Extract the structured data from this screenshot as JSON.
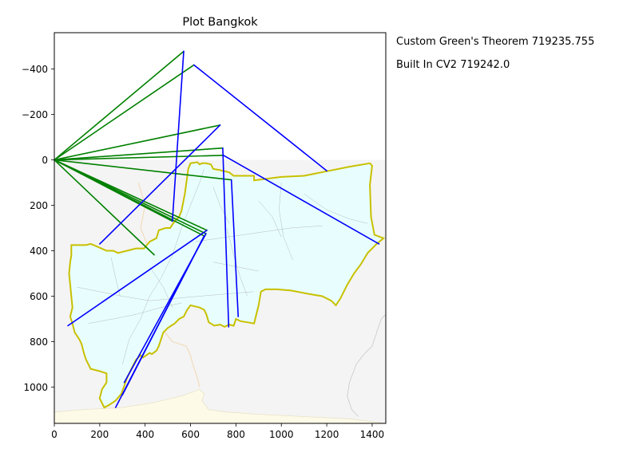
{
  "chart_data": {
    "type": "line",
    "title": "Plot Bangkok",
    "xlabel": "",
    "ylabel": "",
    "xlim": [
      0,
      1460
    ],
    "ylim": [
      1160,
      -560
    ],
    "y_inverted": true,
    "grid": false,
    "x_ticks": [
      0,
      200,
      400,
      600,
      800,
      1000,
      1200,
      1400
    ],
    "x_tick_labels": [
      "0",
      "200",
      "400",
      "600",
      "800",
      "1000",
      "1200",
      "1400"
    ],
    "y_ticks": [
      -400,
      -200,
      0,
      200,
      400,
      600,
      800,
      1000
    ],
    "y_tick_labels": [
      "−400",
      "−200",
      "0",
      "200",
      "400",
      "600",
      "800",
      "1000"
    ],
    "annotations": [
      "Custom Green's Theorem 719235.755",
      "Built In CV2 719242.0"
    ],
    "background_map": {
      "land_color": "#f4f4f4",
      "sea_color": "#fefae8",
      "district_fill": "#e8fefe",
      "district_edge": "#a8a8a8",
      "boundary_color": "#c8c000",
      "boundary": [
        [
          75,
          375
        ],
        [
          140,
          375
        ],
        [
          160,
          370
        ],
        [
          185,
          380
        ],
        [
          230,
          400
        ],
        [
          260,
          400
        ],
        [
          280,
          410
        ],
        [
          320,
          400
        ],
        [
          360,
          390
        ],
        [
          395,
          390
        ],
        [
          420,
          360
        ],
        [
          450,
          345
        ],
        [
          460,
          310
        ],
        [
          490,
          300
        ],
        [
          510,
          300
        ],
        [
          520,
          285
        ],
        [
          530,
          270
        ],
        [
          550,
          250
        ],
        [
          560,
          225
        ],
        [
          575,
          150
        ],
        [
          590,
          40
        ],
        [
          600,
          15
        ],
        [
          630,
          10
        ],
        [
          640,
          20
        ],
        [
          650,
          15
        ],
        [
          670,
          15
        ],
        [
          690,
          20
        ],
        [
          700,
          40
        ],
        [
          730,
          45
        ],
        [
          770,
          55
        ],
        [
          790,
          70
        ],
        [
          880,
          70
        ],
        [
          880,
          90
        ],
        [
          1000,
          75
        ],
        [
          1100,
          70
        ],
        [
          1200,
          50
        ],
        [
          1300,
          30
        ],
        [
          1390,
          15
        ],
        [
          1400,
          25
        ],
        [
          1390,
          110
        ],
        [
          1395,
          250
        ],
        [
          1410,
          330
        ],
        [
          1450,
          345
        ],
        [
          1420,
          370
        ],
        [
          1380,
          410
        ],
        [
          1350,
          460
        ],
        [
          1320,
          500
        ],
        [
          1290,
          550
        ],
        [
          1260,
          610
        ],
        [
          1240,
          640
        ],
        [
          1220,
          620
        ],
        [
          1180,
          600
        ],
        [
          1120,
          590
        ],
        [
          1040,
          575
        ],
        [
          980,
          570
        ],
        [
          930,
          570
        ],
        [
          910,
          580
        ],
        [
          900,
          640
        ],
        [
          880,
          720
        ],
        [
          850,
          715
        ],
        [
          820,
          710
        ],
        [
          800,
          700
        ],
        [
          790,
          730
        ],
        [
          770,
          725
        ],
        [
          750,
          735
        ],
        [
          730,
          725
        ],
        [
          705,
          730
        ],
        [
          680,
          715
        ],
        [
          670,
          680
        ],
        [
          660,
          660
        ],
        [
          640,
          650
        ],
        [
          620,
          645
        ],
        [
          600,
          640
        ],
        [
          585,
          660
        ],
        [
          570,
          690
        ],
        [
          550,
          700
        ],
        [
          530,
          720
        ],
        [
          500,
          740
        ],
        [
          480,
          760
        ],
        [
          470,
          790
        ],
        [
          460,
          820
        ],
        [
          450,
          840
        ],
        [
          430,
          855
        ],
        [
          420,
          850
        ],
        [
          390,
          870
        ],
        [
          380,
          860
        ],
        [
          360,
          880
        ],
        [
          340,
          920
        ],
        [
          320,
          960
        ],
        [
          310,
          990
        ],
        [
          295,
          1030
        ],
        [
          270,
          1060
        ],
        [
          240,
          1080
        ],
        [
          220,
          1090
        ],
        [
          200,
          1050
        ],
        [
          210,
          1010
        ],
        [
          230,
          980
        ],
        [
          230,
          940
        ],
        [
          200,
          930
        ],
        [
          160,
          920
        ],
        [
          140,
          880
        ],
        [
          130,
          850
        ],
        [
          120,
          810
        ],
        [
          110,
          790
        ],
        [
          90,
          760
        ],
        [
          80,
          720
        ],
        [
          70,
          690
        ],
        [
          80,
          650
        ],
        [
          75,
          600
        ],
        [
          70,
          550
        ],
        [
          65,
          500
        ],
        [
          70,
          450
        ],
        [
          75,
          420
        ],
        [
          75,
          375
        ]
      ],
      "districts": [
        [
          [
            300,
            900
          ],
          [
            330,
            790
          ],
          [
            380,
            700
          ],
          [
            420,
            600
          ],
          [
            470,
            520
          ],
          [
            520,
            420
          ],
          [
            560,
            300
          ],
          [
            600,
            200
          ],
          [
            640,
            100
          ],
          [
            660,
            40
          ]
        ],
        [
          [
            100,
            560
          ],
          [
            200,
            580
          ],
          [
            300,
            600
          ],
          [
            420,
            620
          ],
          [
            530,
            610
          ],
          [
            640,
            600
          ],
          [
            760,
            590
          ],
          [
            880,
            580
          ]
        ],
        [
          [
            150,
            720
          ],
          [
            260,
            700
          ],
          [
            360,
            680
          ],
          [
            470,
            650
          ],
          [
            560,
            630
          ]
        ],
        [
          [
            620,
            360
          ],
          [
            760,
            340
          ],
          [
            900,
            320
          ],
          [
            1040,
            300
          ],
          [
            1180,
            290
          ]
        ],
        [
          [
            760,
            300
          ],
          [
            790,
            420
          ],
          [
            820,
            520
          ],
          [
            850,
            600
          ]
        ],
        [
          [
            1000,
            100
          ],
          [
            990,
            220
          ],
          [
            1010,
            340
          ],
          [
            1050,
            440
          ]
        ],
        [
          [
            700,
            120
          ],
          [
            730,
            200
          ],
          [
            770,
            280
          ]
        ],
        [
          [
            420,
            470
          ],
          [
            480,
            560
          ],
          [
            520,
            650
          ]
        ],
        [
          [
            250,
            430
          ],
          [
            270,
            520
          ],
          [
            290,
            600
          ]
        ],
        [
          [
            900,
            180
          ],
          [
            960,
            250
          ],
          [
            1000,
            340
          ]
        ],
        [
          [
            700,
            450
          ],
          [
            800,
            470
          ],
          [
            900,
            490
          ]
        ],
        [
          [
            1100,
            150
          ],
          [
            1200,
            220
          ],
          [
            1300,
            260
          ],
          [
            1380,
            280
          ]
        ]
      ],
      "river": [
        [
          370,
          100
        ],
        [
          400,
          200
        ],
        [
          380,
          300
        ],
        [
          420,
          400
        ],
        [
          460,
          480
        ],
        [
          430,
          560
        ],
        [
          400,
          640
        ],
        [
          420,
          700
        ],
        [
          480,
          750
        ],
        [
          520,
          800
        ],
        [
          580,
          820
        ],
        [
          600,
          860
        ],
        [
          610,
          900
        ],
        [
          630,
          960
        ],
        [
          640,
          1000
        ]
      ],
      "coast": [
        [
          0,
          1110
        ],
        [
          120,
          1100
        ],
        [
          300,
          1090
        ],
        [
          430,
          1070
        ],
        [
          560,
          1040
        ],
        [
          640,
          1010
        ],
        [
          660,
          1030
        ],
        [
          650,
          1060
        ],
        [
          680,
          1100
        ],
        [
          760,
          1110
        ],
        [
          900,
          1120
        ],
        [
          1100,
          1130
        ],
        [
          1300,
          1140
        ],
        [
          1460,
          1160
        ]
      ],
      "coast_east": [
        [
          1460,
          680
        ],
        [
          1440,
          700
        ],
        [
          1420,
          760
        ],
        [
          1400,
          820
        ],
        [
          1360,
          860
        ],
        [
          1330,
          900
        ],
        [
          1300,
          980
        ],
        [
          1290,
          1040
        ],
        [
          1310,
          1100
        ],
        [
          1340,
          1130
        ]
      ]
    },
    "series": [
      {
        "color": "#008000",
        "segments": [
          [
            [
              0,
              0
            ],
            [
              570,
              -478
            ]
          ],
          [
            [
              0,
              0
            ],
            [
              615,
              -418
            ]
          ],
          [
            [
              0,
              0
            ],
            [
              730,
              -153
            ]
          ],
          [
            [
              0,
              0
            ],
            [
              742,
              -52
            ]
          ],
          [
            [
              0,
              0
            ],
            [
              745,
              -20
            ]
          ],
          [
            [
              0,
              0
            ],
            [
              780,
              88
            ]
          ],
          [
            [
              0,
              0
            ],
            [
              520,
              270
            ]
          ],
          [
            [
              0,
              0
            ],
            [
              672,
              310
            ]
          ],
          [
            [
              0,
              0
            ],
            [
              668,
              325
            ]
          ],
          [
            [
              0,
              0
            ],
            [
              660,
              335
            ]
          ],
          [
            [
              0,
              0
            ],
            [
              440,
              418
            ]
          ]
        ]
      },
      {
        "color": "#0000ff",
        "segments": [
          [
            [
              570,
              -478
            ],
            [
              520,
              270
            ]
          ],
          [
            [
              615,
              -418
            ],
            [
              1200,
              48
            ]
          ],
          [
            [
              730,
              -153
            ],
            [
              200,
              370
            ]
          ],
          [
            [
              742,
              -52
            ],
            [
              768,
              735
            ]
          ],
          [
            [
              745,
              -20
            ],
            [
              1430,
              370
            ]
          ],
          [
            [
              780,
              88
            ],
            [
              810,
              690
            ]
          ],
          [
            [
              672,
              310
            ],
            [
              60,
              730
            ]
          ],
          [
            [
              668,
              325
            ],
            [
              308,
              980
            ]
          ],
          [
            [
              660,
              335
            ],
            [
              300,
              1035
            ]
          ],
          [
            [
              660,
              335
            ],
            [
              270,
              1090
            ]
          ]
        ]
      }
    ]
  }
}
